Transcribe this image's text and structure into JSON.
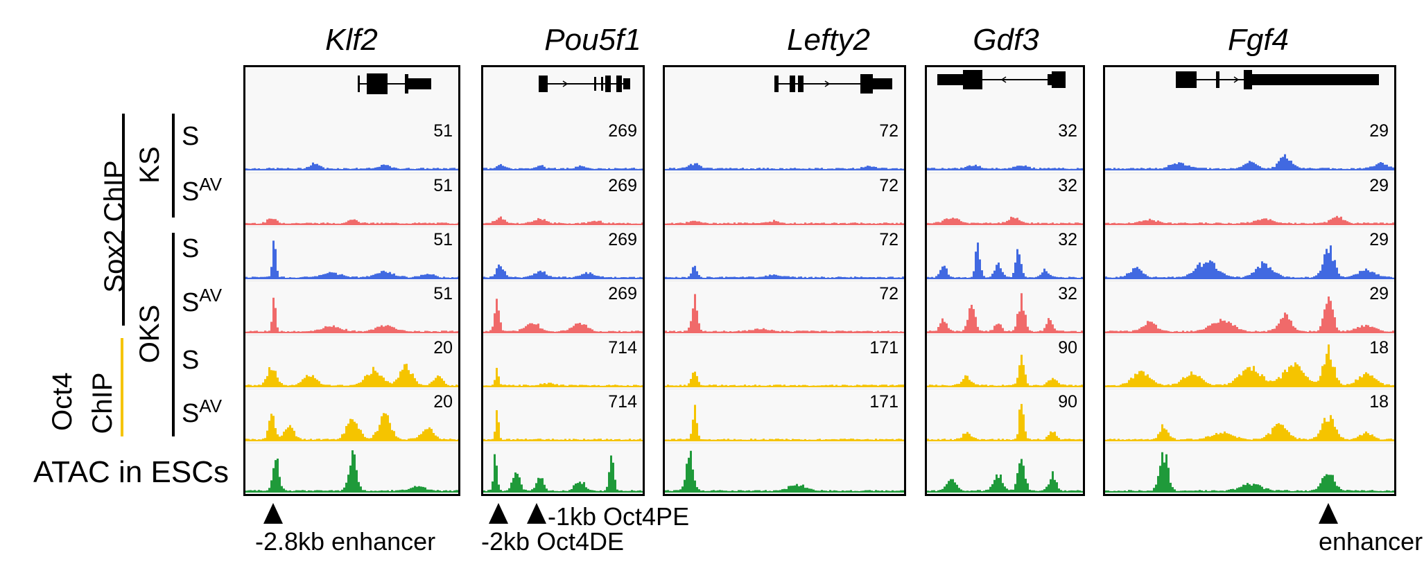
{
  "genes": [
    "Klf2",
    "Pou5f1",
    "Lefty2",
    "Gdf3",
    "Fgf4"
  ],
  "group_labels": {
    "sox2_chip": "Sox2 ChIP",
    "oct4_chip_line1": "Oct4",
    "oct4_chip_line2": "ChIP",
    "ks": "KS",
    "oks": "OKS",
    "atac": "ATAC in ESCs"
  },
  "row_labels": [
    {
      "base": "S",
      "sup": ""
    },
    {
      "base": "S",
      "sup": "AV"
    },
    {
      "base": "S",
      "sup": ""
    },
    {
      "base": "S",
      "sup": "AV"
    },
    {
      "base": "S",
      "sup": ""
    },
    {
      "base": "S",
      "sup": "AV"
    }
  ],
  "scales": [
    [
      "51",
      "269",
      "72",
      "32",
      "29"
    ],
    [
      "51",
      "269",
      "72",
      "32",
      "29"
    ],
    [
      "51",
      "269",
      "72",
      "32",
      "29"
    ],
    [
      "51",
      "269",
      "72",
      "32",
      "29"
    ],
    [
      "20",
      "714",
      "171",
      "90",
      "18"
    ],
    [
      "20",
      "714",
      "171",
      "90",
      "18"
    ]
  ],
  "track_colors": [
    "#4169e1",
    "#f06a6a",
    "#4169e1",
    "#f06a6a",
    "#f5c400",
    "#f5c400",
    "#1f9a3a"
  ],
  "colors": {
    "oct4_bar": "#f5c400"
  },
  "annotations": {
    "klf2": "-2.8kb enhancer",
    "pou_1kb": "-1kb Oct4PE",
    "pou_2kb": "-2kb Oct4DE",
    "fgf4": "enhancer"
  },
  "peaks": [
    [
      [
        [
          0.32,
          0.12,
          0.03
        ],
        [
          0.65,
          0.1,
          0.03
        ]
      ],
      [
        [
          0.1,
          0.08,
          0.03
        ],
        [
          0.35,
          0.08,
          0.03
        ],
        [
          0.6,
          0.06,
          0.03
        ]
      ],
      [
        [
          0.12,
          0.1,
          0.03
        ],
        [
          0.85,
          0.06,
          0.03
        ]
      ],
      [
        [
          0.3,
          0.08,
          0.05
        ],
        [
          0.6,
          0.08,
          0.05
        ]
      ],
      [
        [
          0.25,
          0.12,
          0.04
        ],
        [
          0.5,
          0.15,
          0.03
        ],
        [
          0.62,
          0.25,
          0.03
        ],
        [
          0.95,
          0.12,
          0.03
        ]
      ]
    ],
    [
      [
        [
          0.12,
          0.1,
          0.03
        ],
        [
          0.5,
          0.1,
          0.03
        ]
      ],
      [
        [
          0.1,
          0.12,
          0.04
        ],
        [
          0.35,
          0.1,
          0.05
        ],
        [
          0.7,
          0.06,
          0.04
        ]
      ],
      [
        [
          0.12,
          0.06,
          0.03
        ],
        [
          0.45,
          0.05,
          0.03
        ]
      ],
      [
        [
          0.15,
          0.12,
          0.06
        ],
        [
          0.55,
          0.12,
          0.05
        ]
      ],
      [
        [
          0.15,
          0.08,
          0.04
        ],
        [
          0.55,
          0.1,
          0.04
        ],
        [
          0.8,
          0.15,
          0.03
        ]
      ]
    ],
    [
      [
        [
          0.13,
          0.85,
          0.012
        ],
        [
          0.4,
          0.1,
          0.06
        ],
        [
          0.65,
          0.12,
          0.06
        ],
        [
          0.85,
          0.08,
          0.04
        ]
      ],
      [
        [
          0.1,
          0.3,
          0.03
        ],
        [
          0.35,
          0.15,
          0.05
        ],
        [
          0.65,
          0.1,
          0.05
        ]
      ],
      [
        [
          0.12,
          0.25,
          0.015
        ],
        [
          0.45,
          0.05,
          0.05
        ]
      ],
      [
        [
          0.1,
          0.25,
          0.03
        ],
        [
          0.32,
          0.8,
          0.02
        ],
        [
          0.45,
          0.3,
          0.03
        ],
        [
          0.58,
          0.55,
          0.025
        ],
        [
          0.75,
          0.2,
          0.03
        ]
      ],
      [
        [
          0.1,
          0.2,
          0.03
        ],
        [
          0.35,
          0.35,
          0.05
        ],
        [
          0.55,
          0.3,
          0.04
        ],
        [
          0.77,
          0.65,
          0.025
        ],
        [
          0.9,
          0.15,
          0.04
        ]
      ]
    ],
    [
      [
        [
          0.13,
          0.75,
          0.012
        ],
        [
          0.4,
          0.12,
          0.06
        ],
        [
          0.65,
          0.12,
          0.06
        ]
      ],
      [
        [
          0.08,
          0.75,
          0.02
        ],
        [
          0.3,
          0.2,
          0.06
        ],
        [
          0.6,
          0.18,
          0.06
        ]
      ],
      [
        [
          0.12,
          0.75,
          0.015
        ],
        [
          0.4,
          0.05,
          0.05
        ]
      ],
      [
        [
          0.1,
          0.25,
          0.03
        ],
        [
          0.28,
          0.6,
          0.03
        ],
        [
          0.45,
          0.2,
          0.03
        ],
        [
          0.6,
          0.7,
          0.03
        ],
        [
          0.78,
          0.25,
          0.03
        ]
      ],
      [
        [
          0.15,
          0.2,
          0.03
        ],
        [
          0.4,
          0.25,
          0.05
        ],
        [
          0.62,
          0.35,
          0.03
        ],
        [
          0.77,
          0.85,
          0.02
        ],
        [
          0.9,
          0.15,
          0.04
        ]
      ]
    ],
    [
      [
        [
          0.12,
          0.4,
          0.03
        ],
        [
          0.3,
          0.25,
          0.04
        ],
        [
          0.6,
          0.35,
          0.05
        ],
        [
          0.75,
          0.4,
          0.04
        ],
        [
          0.9,
          0.2,
          0.03
        ]
      ],
      [
        [
          0.08,
          0.35,
          0.015
        ],
        [
          0.4,
          0.05,
          0.06
        ]
      ],
      [
        [
          0.12,
          0.4,
          0.015
        ]
      ],
      [
        [
          0.25,
          0.2,
          0.04
        ],
        [
          0.6,
          0.65,
          0.025
        ],
        [
          0.8,
          0.15,
          0.04
        ]
      ],
      [
        [
          0.12,
          0.3,
          0.04
        ],
        [
          0.3,
          0.3,
          0.04
        ],
        [
          0.5,
          0.4,
          0.05
        ],
        [
          0.65,
          0.45,
          0.05
        ],
        [
          0.77,
          0.75,
          0.025
        ],
        [
          0.9,
          0.25,
          0.04
        ]
      ]
    ],
    [
      [
        [
          0.12,
          0.6,
          0.02
        ],
        [
          0.2,
          0.3,
          0.03
        ],
        [
          0.5,
          0.45,
          0.04
        ],
        [
          0.65,
          0.5,
          0.04
        ],
        [
          0.85,
          0.25,
          0.04
        ]
      ],
      [
        [
          0.08,
          0.85,
          0.012
        ]
      ],
      [
        [
          0.12,
          0.8,
          0.012
        ]
      ],
      [
        [
          0.25,
          0.15,
          0.04
        ],
        [
          0.6,
          0.85,
          0.02
        ],
        [
          0.8,
          0.2,
          0.03
        ]
      ],
      [
        [
          0.2,
          0.3,
          0.02
        ],
        [
          0.4,
          0.15,
          0.05
        ],
        [
          0.6,
          0.3,
          0.04
        ],
        [
          0.77,
          0.5,
          0.03
        ],
        [
          0.9,
          0.15,
          0.03
        ]
      ]
    ],
    [
      [
        [
          0.14,
          0.8,
          0.02
        ],
        [
          0.5,
          0.85,
          0.025
        ],
        [
          0.8,
          0.1,
          0.05
        ]
      ],
      [
        [
          0.07,
          0.9,
          0.015
        ],
        [
          0.2,
          0.5,
          0.03
        ],
        [
          0.35,
          0.3,
          0.03
        ],
        [
          0.6,
          0.25,
          0.04
        ],
        [
          0.8,
          0.85,
          0.02
        ]
      ],
      [
        [
          0.1,
          0.9,
          0.02
        ],
        [
          0.55,
          0.15,
          0.05
        ]
      ],
      [
        [
          0.15,
          0.3,
          0.04
        ],
        [
          0.45,
          0.4,
          0.04
        ],
        [
          0.6,
          0.85,
          0.03
        ],
        [
          0.8,
          0.4,
          0.03
        ]
      ],
      [
        [
          0.2,
          0.9,
          0.02
        ],
        [
          0.5,
          0.15,
          0.05
        ],
        [
          0.77,
          0.4,
          0.03
        ]
      ]
    ]
  ]
}
